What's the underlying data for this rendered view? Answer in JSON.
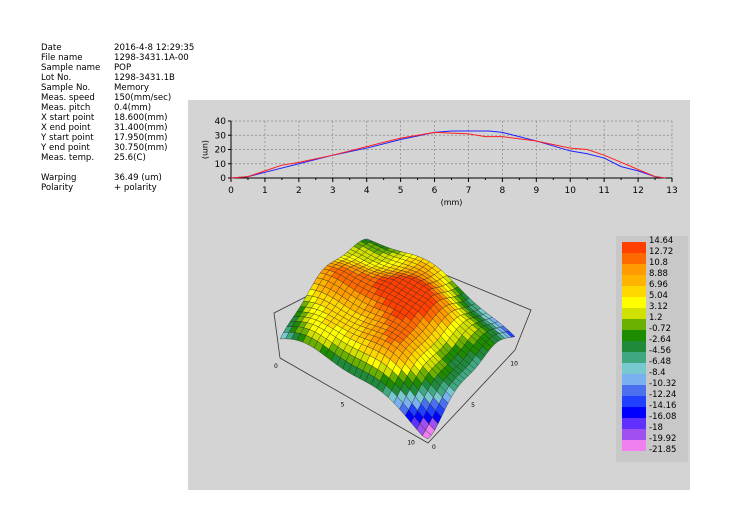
{
  "info": [
    {
      "label": "Date",
      "value": "2016-4-8 12:29:35"
    },
    {
      "label": "File name",
      "value": "1298-3431.1A-00"
    },
    {
      "label": "Sample name",
      "value": "POP"
    },
    {
      "label": "Lot No.",
      "value": "1298-3431.1B"
    },
    {
      "label": "Sample No.",
      "value": "Memory"
    },
    {
      "label": "Meas. speed",
      "value": "150(mm/sec)"
    },
    {
      "label": "Meas. pitch",
      "value": "0.4(mm)"
    },
    {
      "label": "X start point",
      "value": "18.600(mm)"
    },
    {
      "label": "X end point",
      "value": "31.400(mm)"
    },
    {
      "label": "Y start point",
      "value": "17.950(mm)"
    },
    {
      "label": "Y end point",
      "value": "30.750(mm)"
    },
    {
      "label": "Meas. temp.",
      "value": "25.6(C)"
    }
  ],
  "results": [
    {
      "label": "Warping",
      "value": "36.49 (um)"
    },
    {
      "label": "Polarity",
      "value": "+ polarity"
    }
  ],
  "chart_data": [
    {
      "type": "line",
      "xlabel": "(mm)",
      "ylabel": "(um)",
      "xlim": [
        0,
        13
      ],
      "ylim": [
        0,
        40
      ],
      "xticks": [
        "0",
        "1",
        "2",
        "3",
        "4",
        "5",
        "6",
        "7",
        "8",
        "9",
        "10",
        "11",
        "12",
        "13"
      ],
      "yticks": [
        "0",
        "10",
        "20",
        "30",
        "40"
      ],
      "grid": true,
      "series": [
        {
          "color": "#2020ff",
          "points": [
            [
              0,
              0
            ],
            [
              0.5,
              1
            ],
            [
              1,
              4
            ],
            [
              2,
              10
            ],
            [
              3,
              16
            ],
            [
              4,
              21
            ],
            [
              5,
              27
            ],
            [
              6,
              32
            ],
            [
              6.5,
              33
            ],
            [
              7,
              33
            ],
            [
              7.6,
              33
            ],
            [
              8,
              32
            ],
            [
              9,
              26
            ],
            [
              10,
              19
            ],
            [
              10.5,
              17
            ],
            [
              11,
              14
            ],
            [
              11.5,
              8
            ],
            [
              12,
              5
            ],
            [
              12.5,
              1
            ],
            [
              12.8,
              0
            ]
          ]
        },
        {
          "color": "#ff2020",
          "points": [
            [
              0,
              0
            ],
            [
              0.5,
              1
            ],
            [
              1,
              5
            ],
            [
              1.5,
              9
            ],
            [
              2,
              11
            ],
            [
              3,
              16
            ],
            [
              4,
              22
            ],
            [
              5,
              28
            ],
            [
              6,
              32
            ],
            [
              7,
              31
            ],
            [
              7.5,
              29
            ],
            [
              8,
              29
            ],
            [
              9,
              26
            ],
            [
              10,
              21
            ],
            [
              10.5,
              20
            ],
            [
              11,
              16
            ],
            [
              12,
              6
            ],
            [
              12.5,
              1
            ],
            [
              12.8,
              0
            ]
          ]
        }
      ]
    },
    {
      "type": "surface",
      "axis_ticks_a": [
        "0",
        "5",
        "10"
      ],
      "axis_ticks_b": [
        "0",
        "5",
        "10"
      ],
      "zlim": [
        -21.85,
        14.64
      ],
      "legend": [
        {
          "label": "14.64",
          "color": "#ff4000"
        },
        {
          "label": "12.72",
          "color": "#ff6a00"
        },
        {
          "label": "10.8",
          "color": "#ff9a00"
        },
        {
          "label": "8.88",
          "color": "#ffb400"
        },
        {
          "label": "6.96",
          "color": "#ffd800"
        },
        {
          "label": "5.04",
          "color": "#ffff00"
        },
        {
          "label": "3.12",
          "color": "#d0e000"
        },
        {
          "label": "1.2",
          "color": "#6ab000"
        },
        {
          "label": "-0.72",
          "color": "#1e8c00"
        },
        {
          "label": "-2.64",
          "color": "#1e8a3a"
        },
        {
          "label": "-4.56",
          "color": "#40a880"
        },
        {
          "label": "-6.48",
          "color": "#78c8d0"
        },
        {
          "label": "-8.4",
          "color": "#78b0f0"
        },
        {
          "label": "-10.32",
          "color": "#4a70f0"
        },
        {
          "label": "-12.24",
          "color": "#2040ff"
        },
        {
          "label": "-14.16",
          "color": "#0000ff"
        },
        {
          "label": "-16.08",
          "color": "#6030ff"
        },
        {
          "label": "-18",
          "color": "#a050f0"
        },
        {
          "label": "-19.92",
          "color": "#f080f0"
        },
        {
          "label": "-21.85",
          "color": "#f080f0"
        }
      ]
    }
  ]
}
